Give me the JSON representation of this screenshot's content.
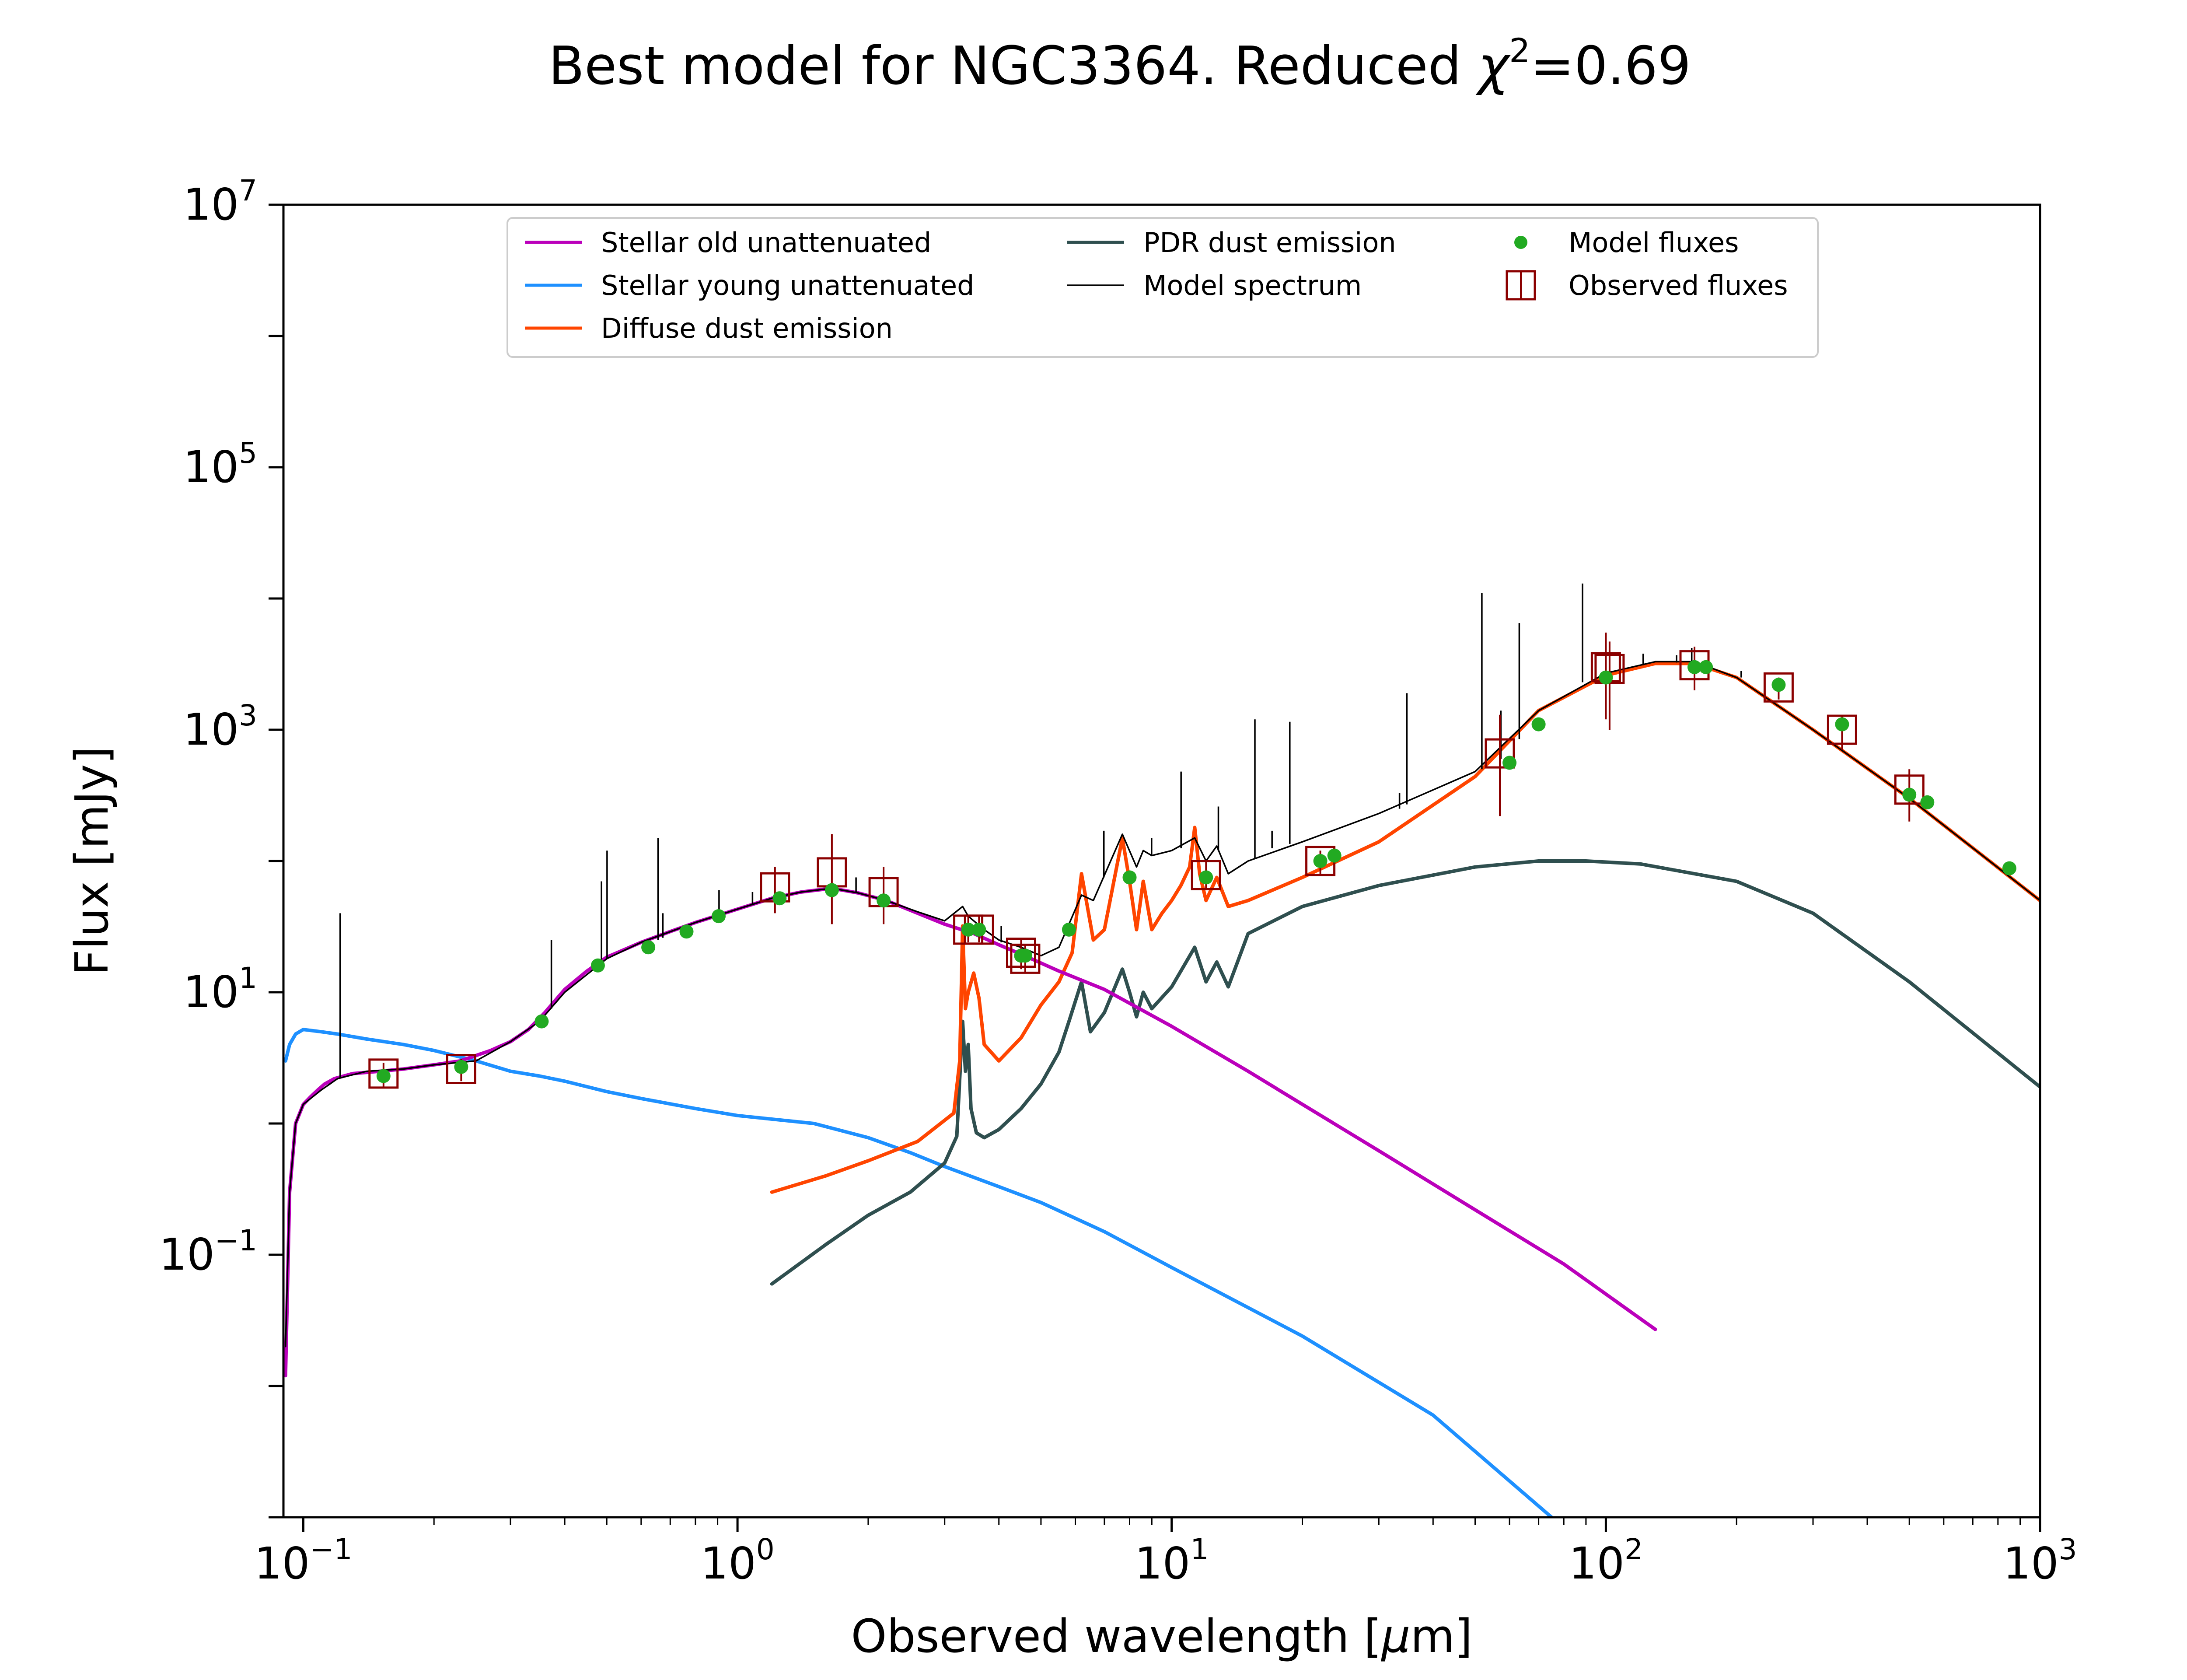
{
  "title_main": "Best model for NGC3364. Reduced ",
  "title_chi": "χ",
  "title_sup": "2",
  "title_value": "=0.69",
  "xlabel_main": "Observed wavelength [",
  "xlabel_mu": "μ",
  "xlabel_end": "m]",
  "ylabel": "Flux [mJy]",
  "colors": {
    "stellar_old": "#bb00bb",
    "stellar_young": "#1e90ff",
    "diffuse": "#ff4500",
    "pdr": "#2f4f4f",
    "model": "#000000",
    "model_fluxes": "#22aa22",
    "observed": "#8b0000"
  },
  "chart_data": {
    "type": "line",
    "title": "Best model for NGC3364. Reduced χ²=0.69",
    "xlabel": "Observed wavelength [μm]",
    "ylabel": "Flux [mJy]",
    "xscale": "log",
    "yscale": "log",
    "xlim": [
      0.09,
      1000
    ],
    "ylim": [
      0.001,
      10000000
    ],
    "grid": false,
    "legend_position": "top-center",
    "x_ticks": [
      {
        "base": "10",
        "exp": "−1",
        "value": 0.1
      },
      {
        "base": "10",
        "exp": "0",
        "value": 1
      },
      {
        "base": "10",
        "exp": "1",
        "value": 10
      },
      {
        "base": "10",
        "exp": "2",
        "value": 100
      },
      {
        "base": "10",
        "exp": "3",
        "value": 1000
      }
    ],
    "y_ticks": [
      {
        "base": "10",
        "exp": "−1",
        "value": 0.1
      },
      {
        "base": "10",
        "exp": "1",
        "value": 10
      },
      {
        "base": "10",
        "exp": "3",
        "value": 1000
      },
      {
        "base": "10",
        "exp": "5",
        "value": 100000
      },
      {
        "base": "10",
        "exp": "7",
        "value": 10000000
      }
    ],
    "series": [
      {
        "name": "Stellar old unattenuated",
        "kind": "line",
        "x": [
          0.091,
          0.093,
          0.096,
          0.1,
          0.104,
          0.108,
          0.112,
          0.118,
          0.124,
          0.13,
          0.15,
          0.17,
          0.2,
          0.23,
          0.27,
          0.3,
          0.33,
          0.36,
          0.4,
          0.45,
          0.5,
          0.6,
          0.7,
          0.8,
          1.0,
          1.2,
          1.4,
          1.65,
          1.9,
          2.2,
          2.6,
          3.0,
          3.5,
          4.0,
          4.5,
          5.5,
          7,
          10,
          15,
          20,
          30,
          50,
          80,
          130
        ],
        "y": [
          0.012,
          0.3,
          1.0,
          1.4,
          1.6,
          1.8,
          2.0,
          2.2,
          2.3,
          2.4,
          2.5,
          2.6,
          2.8,
          3.0,
          3.6,
          4.2,
          5.2,
          7.0,
          10.5,
          14.5,
          18.5,
          24,
          29,
          34,
          43,
          52,
          58,
          62,
          57,
          50,
          40,
          33,
          28,
          23,
          19.5,
          14.5,
          10.5,
          5.5,
          2.5,
          1.4,
          0.62,
          0.22,
          0.085,
          0.027
        ]
      },
      {
        "name": "Stellar young unattenuated",
        "kind": "line",
        "x": [
          0.091,
          0.093,
          0.096,
          0.1,
          0.11,
          0.12,
          0.14,
          0.17,
          0.2,
          0.25,
          0.3,
          0.35,
          0.4,
          0.5,
          0.6,
          0.8,
          1.0,
          1.5,
          2.0,
          2.5,
          3.0,
          4.0,
          5.0,
          7.0,
          10,
          20,
          40,
          75
        ],
        "y": [
          3.0,
          4.0,
          4.8,
          5.2,
          5.0,
          4.8,
          4.4,
          4.0,
          3.6,
          3.0,
          2.5,
          2.3,
          2.1,
          1.75,
          1.55,
          1.3,
          1.15,
          1.0,
          0.78,
          0.6,
          0.47,
          0.33,
          0.25,
          0.15,
          0.08,
          0.024,
          0.006,
          0.001
        ]
      },
      {
        "name": "Diffuse dust emission",
        "kind": "line",
        "x": [
          1.2,
          1.6,
          2.0,
          2.6,
          3.15,
          3.25,
          3.3,
          3.35,
          3.4,
          3.5,
          3.6,
          3.7,
          4.0,
          4.5,
          5.0,
          5.5,
          5.9,
          6.2,
          6.6,
          7.0,
          7.7,
          8.0,
          8.3,
          8.6,
          9.0,
          9.5,
          10.0,
          10.5,
          11.0,
          11.3,
          11.6,
          12.0,
          12.7,
          13.5,
          15,
          20,
          30,
          50,
          70,
          100,
          130,
          160,
          200,
          300,
          500,
          1000
        ],
        "y": [
          0.3,
          0.4,
          0.52,
          0.73,
          1.2,
          3.0,
          32,
          7.5,
          10,
          14,
          9,
          4.0,
          3.0,
          4.5,
          8.0,
          12,
          20,
          80,
          25,
          30,
          150,
          70,
          30,
          70,
          30,
          40,
          50,
          65,
          90,
          180,
          80,
          50,
          75,
          45,
          50,
          75,
          140,
          440,
          1400,
          2600,
          3200,
          3200,
          2500,
          1000,
          300,
          50
        ]
      },
      {
        "name": "PDR dust emission",
        "kind": "line",
        "x": [
          1.2,
          1.6,
          2.0,
          2.5,
          3.0,
          3.2,
          3.3,
          3.35,
          3.4,
          3.45,
          3.55,
          3.7,
          4.0,
          4.5,
          5.0,
          5.5,
          5.8,
          6.2,
          6.5,
          7.0,
          7.7,
          8.0,
          8.3,
          8.6,
          9.0,
          10,
          11.3,
          12,
          12.7,
          13.5,
          15,
          20,
          30,
          50,
          70,
          90,
          120,
          200,
          300,
          500,
          1000
        ],
        "y": [
          0.06,
          0.12,
          0.2,
          0.3,
          0.5,
          0.8,
          6.0,
          2.5,
          4.0,
          1.3,
          0.85,
          0.78,
          0.9,
          1.3,
          2.0,
          3.5,
          6.0,
          12,
          5.0,
          7.0,
          15,
          10,
          6.5,
          10,
          7.5,
          11,
          22,
          12,
          17,
          11,
          28,
          45,
          65,
          90,
          100,
          100,
          95,
          70,
          40,
          12,
          1.9
        ]
      },
      {
        "name": "Model spectrum",
        "kind": "line",
        "x": [
          0.091,
          0.093,
          0.096,
          0.1,
          0.11,
          0.12,
          0.14,
          0.17,
          0.2,
          0.25,
          0.3,
          0.35,
          0.4,
          0.5,
          0.6,
          0.8,
          1.0,
          1.2,
          1.4,
          1.65,
          1.9,
          2.2,
          2.6,
          3.0,
          3.3,
          3.4,
          3.7,
          4.0,
          4.5,
          5.0,
          5.5,
          6.2,
          6.6,
          7.7,
          8.3,
          8.6,
          9.0,
          10,
          11.3,
          12,
          12.7,
          13.5,
          15,
          20,
          30,
          50,
          70,
          100,
          130,
          160,
          200,
          300,
          500,
          1000
        ],
        "y": [
          0.02,
          0.3,
          1.0,
          1.4,
          1.8,
          2.2,
          2.5,
          2.6,
          2.8,
          3.0,
          4.2,
          6.0,
          10,
          18,
          24,
          34,
          43,
          52,
          58,
          62,
          57,
          50,
          41,
          35,
          45,
          38,
          30,
          25,
          22,
          19,
          22,
          55,
          50,
          160,
          90,
          120,
          110,
          120,
          150,
          100,
          130,
          80,
          100,
          140,
          230,
          480,
          1400,
          2700,
          3300,
          3300,
          2500,
          1000,
          300,
          50
        ]
      },
      {
        "name": "Model fluxes",
        "kind": "scatter",
        "x": [
          0.153,
          0.231,
          0.354,
          0.477,
          0.623,
          0.763,
          0.905,
          1.25,
          1.65,
          2.17,
          3.4,
          3.6,
          4.5,
          4.6,
          5.8,
          8.0,
          12,
          22,
          23.7,
          60,
          70,
          100,
          160,
          170,
          250,
          350,
          500,
          550,
          850
        ],
        "y": [
          2.3,
          2.7,
          6.0,
          16,
          22,
          29,
          38,
          52,
          60,
          50,
          30,
          30,
          19,
          19,
          30,
          75,
          75,
          100,
          110,
          560,
          1100,
          2500,
          3000,
          3000,
          2200,
          1100,
          320,
          280,
          88
        ]
      },
      {
        "name": "Observed fluxes",
        "kind": "scatter-error",
        "x": [
          0.153,
          0.231,
          1.22,
          1.65,
          2.17,
          3.4,
          3.6,
          4.5,
          4.6,
          12,
          22,
          57,
          100,
          102,
          160,
          250,
          350,
          500
        ],
        "y": [
          2.4,
          2.6,
          63,
          82,
          58,
          30,
          30,
          20,
          18,
          78,
          100,
          660,
          3000,
          2900,
          3100,
          2100,
          1000,
          350
        ],
        "ylo": [
          1.9,
          2.1,
          40,
          33,
          33,
          24,
          24,
          15,
          14,
          60,
          80,
          220,
          1200,
          1000,
          2000,
          1700,
          700,
          200
        ],
        "yhi": [
          2.9,
          3.1,
          90,
          160,
          90,
          38,
          38,
          25,
          23,
          100,
          120,
          1300,
          5500,
          4700,
          4300,
          2500,
          1300,
          500
        ]
      }
    ],
    "emission_lines": [
      {
        "x": 0.1216,
        "base": 2.2,
        "peak": 40
      },
      {
        "x": 0.3727,
        "base": 7.5,
        "peak": 25
      },
      {
        "x": 0.4861,
        "base": 17,
        "peak": 70
      },
      {
        "x": 0.5007,
        "base": 18,
        "peak": 120
      },
      {
        "x": 0.6563,
        "base": 25,
        "peak": 150
      },
      {
        "x": 0.6731,
        "base": 26,
        "peak": 40
      },
      {
        "x": 0.9069,
        "base": 40,
        "peak": 60
      },
      {
        "x": 1.083,
        "base": 46,
        "peak": 58
      },
      {
        "x": 1.875,
        "base": 58,
        "peak": 75
      },
      {
        "x": 4.05,
        "base": 24,
        "peak": 32
      },
      {
        "x": 6.98,
        "base": 75,
        "peak": 170
      },
      {
        "x": 8.99,
        "base": 110,
        "peak": 150
      },
      {
        "x": 10.51,
        "base": 125,
        "peak": 480
      },
      {
        "x": 12.81,
        "base": 120,
        "peak": 260
      },
      {
        "x": 15.55,
        "base": 105,
        "peak": 1200
      },
      {
        "x": 17.03,
        "base": 125,
        "peak": 170
      },
      {
        "x": 18.71,
        "base": 135,
        "peak": 1150
      },
      {
        "x": 33.48,
        "base": 250,
        "peak": 330
      },
      {
        "x": 34.81,
        "base": 270,
        "peak": 1900
      },
      {
        "x": 51.81,
        "base": 500,
        "peak": 11000
      },
      {
        "x": 57.3,
        "base": 600,
        "peak": 1400
      },
      {
        "x": 63.18,
        "base": 850,
        "peak": 6500
      },
      {
        "x": 88.36,
        "base": 2300,
        "peak": 13000
      },
      {
        "x": 121.9,
        "base": 3100,
        "peak": 3800
      },
      {
        "x": 145.5,
        "base": 3250,
        "peak": 3700
      },
      {
        "x": 157.7,
        "base": 3300,
        "peak": 4200
      },
      {
        "x": 205.0,
        "base": 2500,
        "peak": 2800
      }
    ]
  }
}
